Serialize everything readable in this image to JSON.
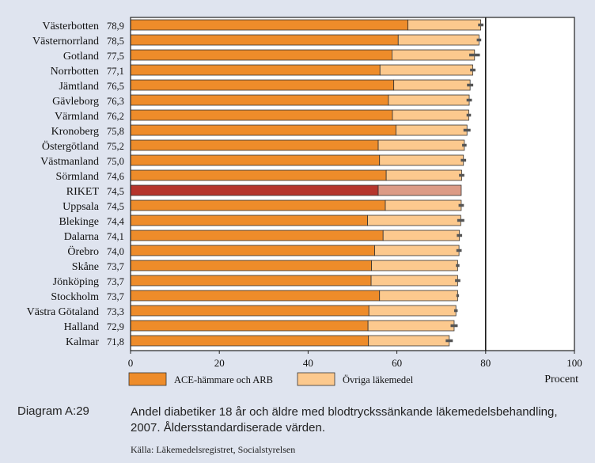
{
  "chart_data": {
    "type": "bar",
    "orientation": "horizontal",
    "stacked": true,
    "categories": [
      "Västerbotten",
      "Västernorrland",
      "Gotland",
      "Norrbotten",
      "Jämtland",
      "Gävleborg",
      "Värmland",
      "Kronoberg",
      "Östergötland",
      "Västmanland",
      "Sörmland",
      "RIKET",
      "Uppsala",
      "Blekinge",
      "Dalarna",
      "Örebro",
      "Skåne",
      "Jönköping",
      "Stockholm",
      "Västra Götaland",
      "Halland",
      "Kalmar"
    ],
    "value_labels": [
      "78,9",
      "78,5",
      "77,5",
      "77,1",
      "76,5",
      "76,3",
      "76,2",
      "75,8",
      "75,2",
      "75,0",
      "74,6",
      "74,5",
      "74,5",
      "74,4",
      "74,1",
      "74,0",
      "73,7",
      "73,7",
      "73,7",
      "73,3",
      "72,9",
      "71,8"
    ],
    "totals": [
      78.9,
      78.5,
      77.5,
      77.1,
      76.5,
      76.3,
      76.2,
      75.8,
      75.2,
      75.0,
      74.6,
      74.5,
      74.5,
      74.4,
      74.1,
      74.0,
      73.7,
      73.7,
      73.7,
      73.3,
      72.9,
      71.8
    ],
    "series": [
      {
        "name": "ACE-hämmare och ARB",
        "values": [
          62.5,
          60.3,
          58.9,
          56.2,
          59.3,
          58.1,
          59.0,
          59.8,
          55.8,
          56.1,
          57.6,
          55.8,
          57.4,
          53.4,
          56.9,
          55.0,
          54.3,
          54.2,
          56.1,
          53.7,
          53.5,
          53.6
        ]
      },
      {
        "name": "Övriga läkemedel",
        "values": [
          16.4,
          18.2,
          18.6,
          20.9,
          17.2,
          18.2,
          17.2,
          16.0,
          19.4,
          18.9,
          17.0,
          18.7,
          17.1,
          21.0,
          17.2,
          19.0,
          19.4,
          19.5,
          17.6,
          19.6,
          19.4,
          18.2
        ]
      }
    ],
    "error_half_widths": [
      0.6,
      0.5,
      1.2,
      0.6,
      0.7,
      0.6,
      0.5,
      0.8,
      0.5,
      0.6,
      0.6,
      0.0,
      0.6,
      0.8,
      0.6,
      0.6,
      0.4,
      0.6,
      0.3,
      0.4,
      0.8,
      0.8
    ],
    "highlight_category": "RIKET",
    "reference_line": 80,
    "xlim": [
      0,
      100
    ],
    "xticks": [
      0,
      20,
      40,
      60,
      80,
      100
    ],
    "xtick_labels": [
      "0",
      "20",
      "40",
      "60",
      "80",
      "100"
    ],
    "xlabel": "Procent",
    "legend_position": "bottom-left",
    "colors": {
      "ace": "#ee8c2a",
      "ovriga": "#fcc98e",
      "riket_ace": "#b5352c",
      "riket_ovriga": "#dc9b86",
      "error": "#555555",
      "background": "#dfe4ef",
      "plot_area": "#ffffff"
    }
  },
  "caption": {
    "label": "Diagram A:29",
    "text": "Andel diabetiker 18 år och äldre med blodtryckssänkande läkemedelsbehandling, 2007. Åldersstandardiserade värden.",
    "source": "Källa: Läkemedelsregistret, Socialstyrelsen"
  }
}
